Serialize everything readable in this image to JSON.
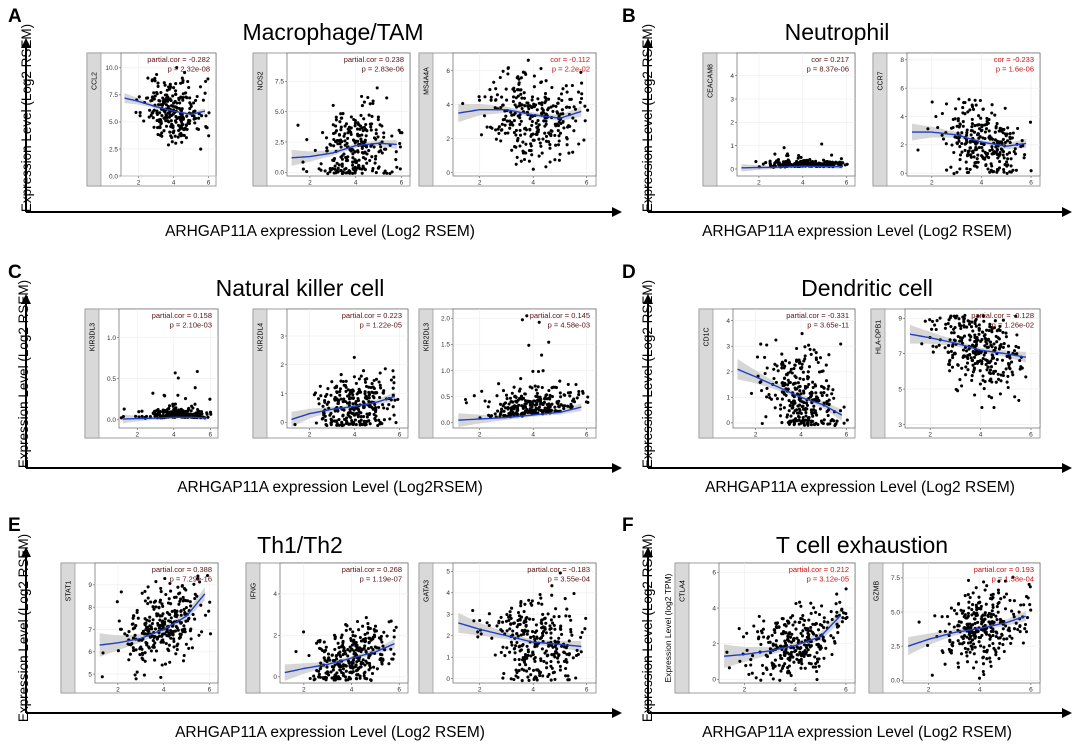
{
  "figure": {
    "panels": [
      {
        "label": "A",
        "title": "Macrophage/TAM",
        "ylabel": "Expression  Level  (Log2 RSEM)",
        "xlabel": "ARHGAP11A expression Level (Log2 RSEM)"
      },
      {
        "label": "B",
        "title": "Neutrophil",
        "ylabel": "Expression  Level  (Log2 RSEM)",
        "xlabel": "ARHGAP11A expression Level (Log2 RSEM)"
      },
      {
        "label": "C",
        "title": "Natural killer cell",
        "ylabel": "Expression  Level  (Log2 RSEM)",
        "xlabel": "ARHGAP11A expression Level (Log2RSEM)"
      },
      {
        "label": "D",
        "title": "Dendritic cell",
        "ylabel": "Expression  Level  (Log2 RSEM)",
        "xlabel": "ARHGAP11A expression Level (Log2 RSEM)"
      },
      {
        "label": "E",
        "title": "Th1/Th2",
        "ylabel": "Expression  Level  (Log2 RSEM)",
        "xlabel": "ARHGAP11A expression Level (Log2 RSEM)"
      },
      {
        "label": "F",
        "title": "T cell exhaustion",
        "ylabel": "Expression  Level  (Log2 RSEM)",
        "xlabel": "ARHGAP11A expression Level (Log2 RSEM)"
      }
    ]
  },
  "colors": {
    "point": "#000000",
    "trend": "#1f3fc4",
    "band": "#c8c8c8",
    "annot_dark": "#5a1010",
    "annot_red": "#cc1111",
    "strip": "#d9d9d9"
  },
  "chart_data": [
    {
      "type": "scatter",
      "panel": "A",
      "gene": "CCL2",
      "stat_label": "partial.cor",
      "cor": "-0.282",
      "p": "2.32e-08",
      "xlim": [
        1,
        6.2
      ],
      "ylim": [
        0,
        11
      ],
      "xticks": [
        2,
        4,
        6
      ],
      "yticks": [
        0.0,
        2.5,
        5.0,
        7.5,
        10.0
      ],
      "ytick_labels": [
        "0.0",
        "2.5",
        "5.0",
        "7.5",
        "10.0"
      ],
      "center": 6.2,
      "spread": 1.5,
      "slope": -0.25,
      "trend": [
        [
          1.2,
          7.2
        ],
        [
          2,
          6.9
        ],
        [
          3,
          6.4
        ],
        [
          4,
          6.0
        ],
        [
          5,
          5.7
        ],
        [
          5.8,
          6.0
        ]
      ],
      "band_w": 0.35,
      "n": 260,
      "seed": 11,
      "annot": "dark"
    },
    {
      "type": "scatter",
      "panel": "A",
      "gene": "NOS2",
      "stat_label": "partial.cor",
      "cor": "0.238",
      "p": "2.83e-06",
      "xlim": [
        1,
        6.2
      ],
      "ylim": [
        -0.3,
        9.5
      ],
      "xticks": [
        2,
        4,
        6
      ],
      "yticks": [
        0.0,
        2.5,
        5.0,
        7.5
      ],
      "ytick_labels": [
        "0.0",
        "2.5",
        "5.0",
        "7.5"
      ],
      "center": 2.0,
      "spread": 1.6,
      "slope": 0.25,
      "trend": [
        [
          1.2,
          1.2
        ],
        [
          2,
          1.3
        ],
        [
          3,
          1.6
        ],
        [
          4,
          2.2
        ],
        [
          5,
          2.4
        ],
        [
          5.8,
          2.3
        ]
      ],
      "band_w": 0.5,
      "n": 260,
      "seed": 23,
      "annot": "dark"
    },
    {
      "type": "scatter",
      "panel": "A",
      "gene": "MS4A4A",
      "stat_label": "cor",
      "cor": "-0.112",
      "p": "2.2e-02",
      "xlim": [
        1,
        6.2
      ],
      "ylim": [
        -0.2,
        6.8
      ],
      "xticks": [
        2,
        4,
        6
      ],
      "yticks": [
        0,
        2,
        4,
        6
      ],
      "ytick_labels": [
        "0",
        "2",
        "4",
        "6"
      ],
      "center": 3.6,
      "spread": 1.3,
      "slope": -0.05,
      "trend": [
        [
          1.2,
          3.5
        ],
        [
          2,
          3.7
        ],
        [
          3,
          3.7
        ],
        [
          4,
          3.4
        ],
        [
          5,
          3.2
        ],
        [
          5.8,
          3.6
        ]
      ],
      "band_w": 0.4,
      "n": 300,
      "seed": 37,
      "annot": "red"
    },
    {
      "type": "scatter",
      "panel": "B",
      "gene": "CEACAM8",
      "stat_label": "cor",
      "cor": "0.217",
      "p": "8.37e-06",
      "xlim": [
        1,
        6.2
      ],
      "ylim": [
        -0.3,
        4.8
      ],
      "xticks": [
        2,
        4,
        6
      ],
      "yticks": [
        0,
        1,
        2,
        3,
        4
      ],
      "ytick_labels": [
        "0",
        "1",
        "2",
        "3",
        "4"
      ],
      "center": 0.08,
      "spread": 0.12,
      "slope": 0.02,
      "trend": [
        [
          1.2,
          0.05
        ],
        [
          3,
          0.08
        ],
        [
          4,
          0.12
        ],
        [
          5,
          0.1
        ],
        [
          5.8,
          0.1
        ]
      ],
      "band_w": 0.12,
      "n": 260,
      "seed": 41,
      "annot": "dark"
    },
    {
      "type": "scatter",
      "panel": "B",
      "gene": "CCR7",
      "stat_label": "cor",
      "cor": "-0.233",
      "p": "1.6e-06",
      "xlim": [
        1,
        6.2
      ],
      "ylim": [
        -0.2,
        8.2
      ],
      "xticks": [
        2,
        4,
        6
      ],
      "yticks": [
        0,
        2,
        4,
        6,
        8
      ],
      "ytick_labels": [
        "0",
        "2",
        "4",
        "6",
        "8"
      ],
      "center": 2.2,
      "spread": 1.3,
      "slope": -0.2,
      "trend": [
        [
          1.2,
          2.9
        ],
        [
          2,
          2.9
        ],
        [
          3,
          2.7
        ],
        [
          4,
          2.2
        ],
        [
          5,
          1.9
        ],
        [
          5.8,
          2.1
        ]
      ],
      "band_w": 0.45,
      "n": 280,
      "seed": 53,
      "annot": "red"
    },
    {
      "type": "scatter",
      "panel": "C",
      "gene": "KIR3DL3",
      "stat_label": "partial.cor",
      "cor": "0.158",
      "p": "2.10e-03",
      "xlim": [
        1,
        6.2
      ],
      "ylim": [
        -0.1,
        1.3
      ],
      "xticks": [
        2,
        4,
        6
      ],
      "yticks": [
        0.0,
        0.5,
        1.0
      ],
      "ytick_labels": [
        "0.0",
        "0.5",
        "1.0"
      ],
      "center": 0.03,
      "spread": 0.05,
      "slope": 0.01,
      "trend": [
        [
          1.2,
          0.01
        ],
        [
          3,
          0.02
        ],
        [
          4,
          0.03
        ],
        [
          5,
          0.03
        ],
        [
          5.8,
          0.02
        ]
      ],
      "band_w": 0.04,
      "n": 240,
      "seed": 67,
      "annot": "dark"
    },
    {
      "type": "scatter",
      "panel": "C",
      "gene": "KIR2DL4",
      "stat_label": "partial.cor",
      "cor": "0.223",
      "p": "1.22e-05",
      "xlim": [
        1,
        6.2
      ],
      "ylim": [
        -0.2,
        3.8
      ],
      "xticks": [
        2,
        4,
        6
      ],
      "yticks": [
        0,
        1,
        2,
        3
      ],
      "ytick_labels": [
        "0",
        "1",
        "2",
        "3"
      ],
      "center": 0.5,
      "spread": 0.55,
      "slope": 0.15,
      "trend": [
        [
          1.2,
          0.1
        ],
        [
          2,
          0.3
        ],
        [
          3,
          0.45
        ],
        [
          4,
          0.55
        ],
        [
          5,
          0.7
        ],
        [
          5.8,
          0.9
        ]
      ],
      "band_w": 0.2,
      "n": 280,
      "seed": 79,
      "annot": "dark"
    },
    {
      "type": "scatter",
      "panel": "C",
      "gene": "KIR2DL3",
      "stat_label": "partial.cor",
      "cor": "0.145",
      "p": "4.58e-03",
      "xlim": [
        1,
        6.2
      ],
      "ylim": [
        -0.1,
        2.1
      ],
      "xticks": [
        2,
        4,
        6
      ],
      "yticks": [
        0.0,
        0.5,
        1.0,
        1.5,
        2.0
      ],
      "ytick_labels": [
        "0.0",
        "0.5",
        "1.0",
        "1.5",
        "2.0"
      ],
      "center": 0.15,
      "spread": 0.25,
      "slope": 0.05,
      "trend": [
        [
          1.2,
          0.05
        ],
        [
          3,
          0.1
        ],
        [
          4,
          0.15
        ],
        [
          5,
          0.2
        ],
        [
          5.8,
          0.3
        ]
      ],
      "band_w": 0.1,
      "n": 260,
      "seed": 83,
      "annot": "dark"
    },
    {
      "type": "scatter",
      "panel": "D",
      "gene": "CD1C",
      "stat_label": "partial.cor",
      "cor": "-0.331",
      "p": "3.65e-11",
      "xlim": [
        1,
        6.2
      ],
      "ylim": [
        -0.2,
        4.3
      ],
      "xticks": [
        2,
        4,
        6
      ],
      "yticks": [
        0,
        1,
        2,
        3,
        4
      ],
      "ytick_labels": [
        "0",
        "1",
        "2",
        "3",
        "4"
      ],
      "center": 1.3,
      "spread": 0.9,
      "slope": -0.3,
      "trend": [
        [
          1.2,
          2.1
        ],
        [
          2,
          1.8
        ],
        [
          3,
          1.4
        ],
        [
          4,
          1.0
        ],
        [
          5,
          0.7
        ],
        [
          5.8,
          0.3
        ]
      ],
      "band_w": 0.3,
      "n": 300,
      "seed": 97,
      "annot": "dark"
    },
    {
      "type": "scatter",
      "panel": "D",
      "gene": "HLA-DPB1",
      "stat_label": "partial.cor",
      "cor": "-0.128",
      "p": "1.26e-02",
      "xlim": [
        1,
        6.2
      ],
      "ylim": [
        2.8,
        9.3
      ],
      "xticks": [
        2,
        4,
        6
      ],
      "yticks": [
        3,
        5,
        7,
        9
      ],
      "ytick_labels": [
        "3",
        "5",
        "7",
        "9"
      ],
      "center": 7.3,
      "spread": 1.2,
      "slope": -0.12,
      "trend": [
        [
          1.2,
          8.1
        ],
        [
          2,
          7.9
        ],
        [
          3,
          7.6
        ],
        [
          4,
          7.2
        ],
        [
          5,
          7.0
        ],
        [
          5.8,
          6.8
        ]
      ],
      "band_w": 0.4,
      "n": 300,
      "seed": 101,
      "annot": "dark"
    },
    {
      "type": "scatter",
      "panel": "E",
      "gene": "STAT1",
      "stat_label": "partial.cor",
      "cor": "0.388",
      "p": "7.29e-16",
      "xlim": [
        1,
        6.2
      ],
      "ylim": [
        4.6,
        9.8
      ],
      "xticks": [
        2,
        4,
        6
      ],
      "yticks": [
        5,
        6,
        7,
        8,
        9
      ],
      "ytick_labels": [
        "5",
        "6",
        "7",
        "8",
        "9"
      ],
      "center": 7.0,
      "spread": 0.9,
      "slope": 0.35,
      "trend": [
        [
          1.2,
          6.3
        ],
        [
          2,
          6.4
        ],
        [
          3,
          6.6
        ],
        [
          4,
          7.0
        ],
        [
          5,
          7.6
        ],
        [
          5.8,
          8.6
        ]
      ],
      "band_w": 0.4,
      "n": 300,
      "seed": 113,
      "annot": "dark"
    },
    {
      "type": "scatter",
      "panel": "E",
      "gene": "IFNG",
      "stat_label": "partial.cor",
      "cor": "0.268",
      "p": "1.19e-07",
      "xlim": [
        1,
        6.2
      ],
      "ylim": [
        -0.3,
        5.3
      ],
      "xticks": [
        2,
        4,
        6
      ],
      "yticks": [
        0,
        2,
        4
      ],
      "ytick_labels": [
        "0",
        "2",
        "4"
      ],
      "center": 0.9,
      "spread": 0.8,
      "slope": 0.25,
      "trend": [
        [
          1.2,
          0.2
        ],
        [
          2,
          0.4
        ],
        [
          3,
          0.6
        ],
        [
          4,
          0.9
        ],
        [
          5,
          1.2
        ],
        [
          5.8,
          1.6
        ]
      ],
      "band_w": 0.3,
      "n": 300,
      "seed": 127,
      "annot": "dark"
    },
    {
      "type": "scatter",
      "panel": "E",
      "gene": "GATA3",
      "stat_label": "partial.cor",
      "cor": "-0.183",
      "p": "3.55e-04",
      "xlim": [
        1,
        6.2
      ],
      "ylim": [
        -0.2,
        5.2
      ],
      "xticks": [
        2,
        4,
        6
      ],
      "yticks": [
        0,
        1,
        2,
        3,
        4,
        5
      ],
      "ytick_labels": [
        "0",
        "1",
        "2",
        "3",
        "4",
        "5"
      ],
      "center": 1.9,
      "spread": 1.0,
      "slope": -0.2,
      "trend": [
        [
          1.2,
          2.6
        ],
        [
          2,
          2.3
        ],
        [
          3,
          2.0
        ],
        [
          4,
          1.7
        ],
        [
          5,
          1.6
        ],
        [
          5.8,
          1.5
        ]
      ],
      "band_w": 0.35,
      "n": 300,
      "seed": 131,
      "annot": "dark"
    },
    {
      "type": "scatter",
      "panel": "F",
      "gene": "CTLA4",
      "stat_label": "partial.cor",
      "cor": "0.212",
      "p": "3.12e-05",
      "xlim": [
        1,
        6.2
      ],
      "ylim": [
        -0.2,
        6.3
      ],
      "xticks": [
        2,
        4,
        6
      ],
      "yticks": [
        0,
        2,
        4,
        6
      ],
      "ytick_labels": [
        "0",
        "2",
        "4",
        "6"
      ],
      "ylabel": "Expression Level (log2 TPM)",
      "center": 1.8,
      "spread": 0.9,
      "slope": 0.2,
      "trend": [
        [
          1.2,
          1.3
        ],
        [
          2,
          1.4
        ],
        [
          3,
          1.6
        ],
        [
          4,
          1.9
        ],
        [
          5,
          2.4
        ],
        [
          5.8,
          3.6
        ]
      ],
      "band_w": 0.5,
      "n": 300,
      "seed": 139,
      "annot": "red"
    },
    {
      "type": "scatter",
      "panel": "F",
      "gene": "GZMB",
      "stat_label": "partial.cor",
      "cor": "0.193",
      "p": "1.58e-04",
      "xlim": [
        1,
        6.2
      ],
      "ylim": [
        -0.2,
        8.3
      ],
      "xticks": [
        2,
        4,
        6
      ],
      "yticks": [
        0.0,
        2.5,
        5.0,
        7.5
      ],
      "ytick_labels": [
        "0.0",
        "2.5",
        "5.0",
        "7.5"
      ],
      "center": 3.8,
      "spread": 1.4,
      "slope": 0.3,
      "trend": [
        [
          1.2,
          2.5
        ],
        [
          2,
          3.0
        ],
        [
          3,
          3.5
        ],
        [
          4,
          3.8
        ],
        [
          5,
          4.2
        ],
        [
          5.8,
          4.7
        ]
      ],
      "band_w": 0.5,
      "n": 300,
      "seed": 149,
      "annot": "red"
    }
  ]
}
